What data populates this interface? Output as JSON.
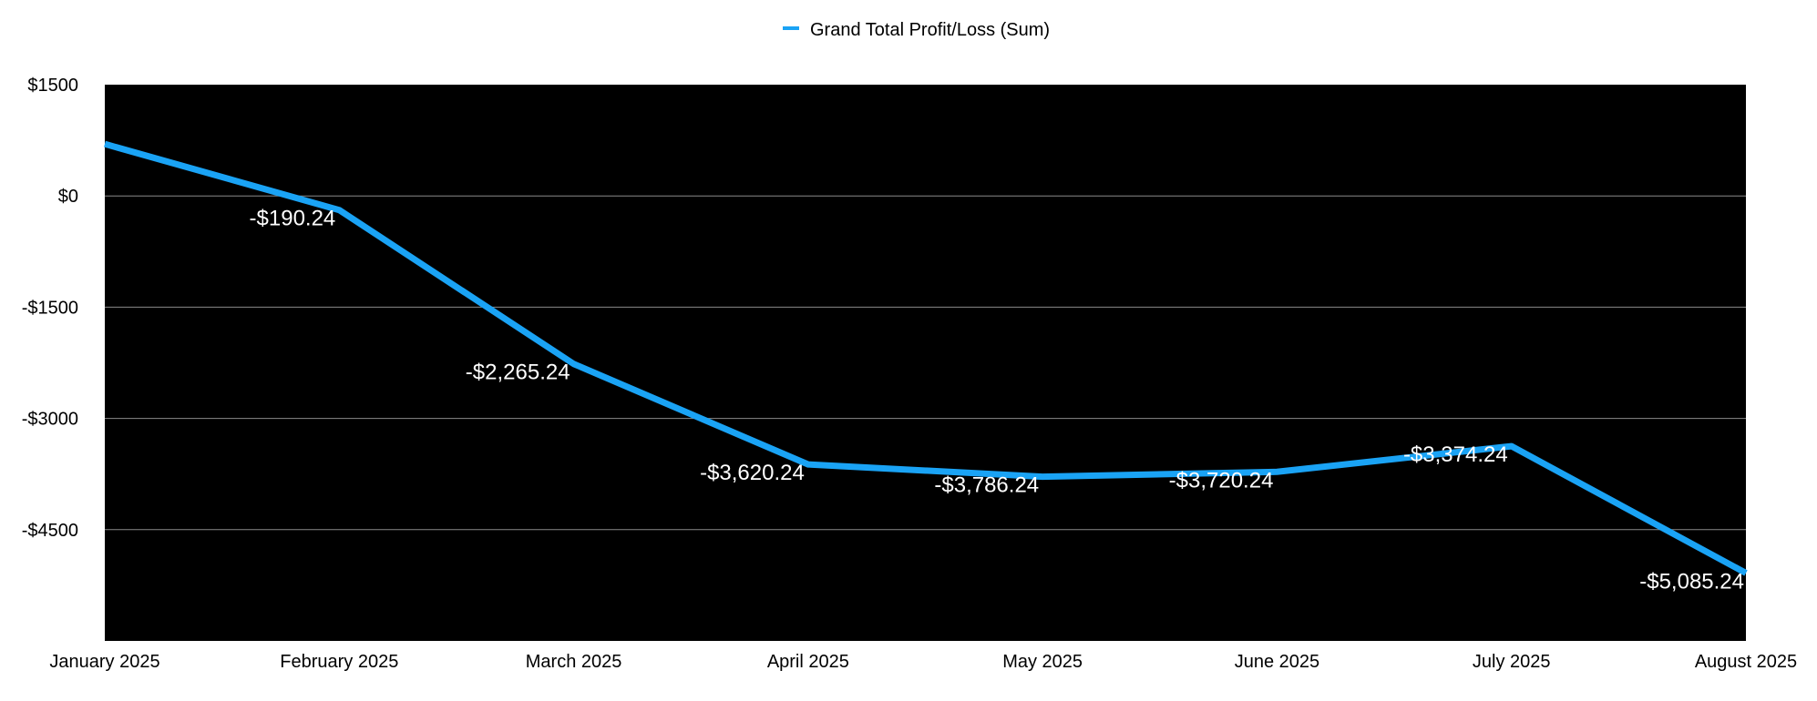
{
  "chart_data": {
    "type": "line",
    "title": "",
    "xlabel": "",
    "ylabel": "",
    "categories": [
      "January 2025",
      "February 2025",
      "March 2025",
      "April 2025",
      "May 2025",
      "June 2025",
      "July 2025",
      "August 2025"
    ],
    "series": [
      {
        "name": "Grand Total Profit/Loss (Sum)",
        "values": [
          700,
          -190.24,
          -2265.24,
          -3620.24,
          -3786.24,
          -3720.24,
          -3374.24,
          -5085.24
        ],
        "data_labels": [
          "",
          "-$190.24",
          "-$2,265.24",
          "-$3,620.24",
          "-$3,786.24",
          "-$3,720.24",
          "-$3,374.24",
          "-$5,085.24"
        ],
        "color": "#1aa3f5"
      }
    ],
    "ylim": [
      -6000,
      1500
    ],
    "yticks": [
      1500,
      0,
      -1500,
      -3000,
      -4500
    ],
    "ytick_labels": [
      "$1500",
      "$0",
      "-$1500",
      "-$3000",
      "-$4500"
    ],
    "grid": true,
    "legend_position": "top-center",
    "plot_background": "#000000",
    "grid_color": "#8a8a8a",
    "data_label_color": "#ffffff"
  }
}
